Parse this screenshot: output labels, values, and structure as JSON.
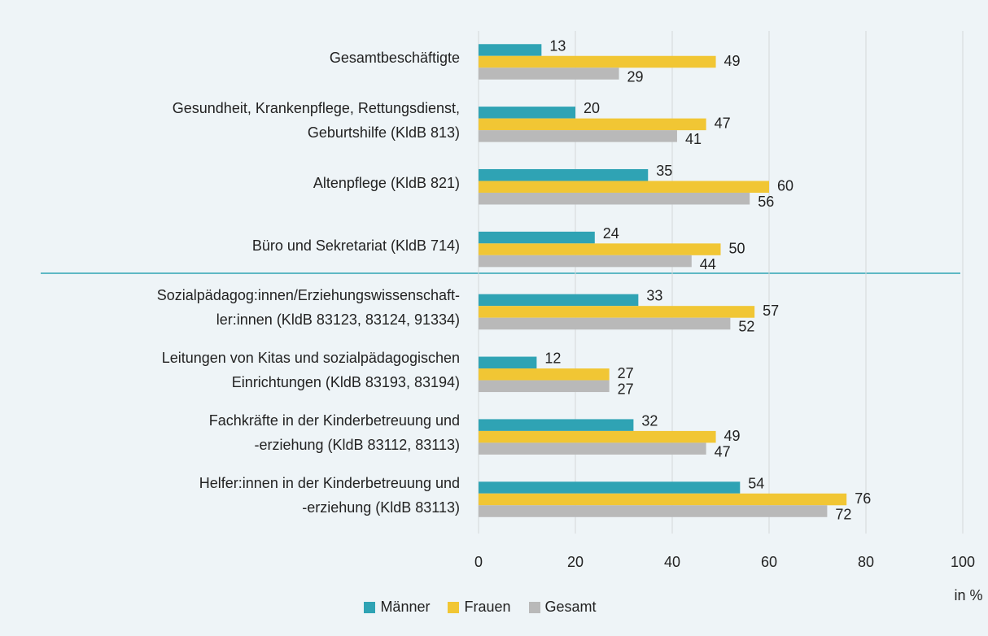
{
  "chart_data": {
    "type": "bar",
    "orientation": "horizontal",
    "categories": [
      "Gesamtbeschäftigte",
      "Gesundheit, Krankenpflege, Rettungsdienst,\nGeburtshilfe (KldB 813)",
      "Altenpflege (KldB 821)",
      "Büro und Sekretariat (KldB 714)",
      "Sozialpädagog:innen/Erziehungswissenschaft-\nler:innen (KldB 83123, 83124, 91334)",
      "Leitungen von Kitas und sozialpädagogischen\nEinrichtungen (KldB 83193, 83194)",
      "Fachkräfte in der Kinderbetreuung und\n-erziehung (KldB 83112, 83113)",
      "Helfer:innen in der Kinderbetreuung und\n-erziehung (KldB 83113)"
    ],
    "series": [
      {
        "name": "Männer",
        "color": "#2fa3b4",
        "values": [
          13,
          20,
          35,
          24,
          33,
          12,
          32,
          54
        ]
      },
      {
        "name": "Frauen",
        "color": "#f1c634",
        "values": [
          49,
          47,
          60,
          50,
          57,
          27,
          49,
          76
        ]
      },
      {
        "name": "Gesamt",
        "color": "#b9b9b9",
        "values": [
          29,
          41,
          56,
          44,
          52,
          27,
          47,
          72
        ]
      }
    ],
    "xlabel": "in %",
    "xlim": [
      0,
      100
    ],
    "xticks": [
      0,
      20,
      40,
      60,
      80,
      100
    ],
    "grid": true,
    "legend": "bottom"
  }
}
